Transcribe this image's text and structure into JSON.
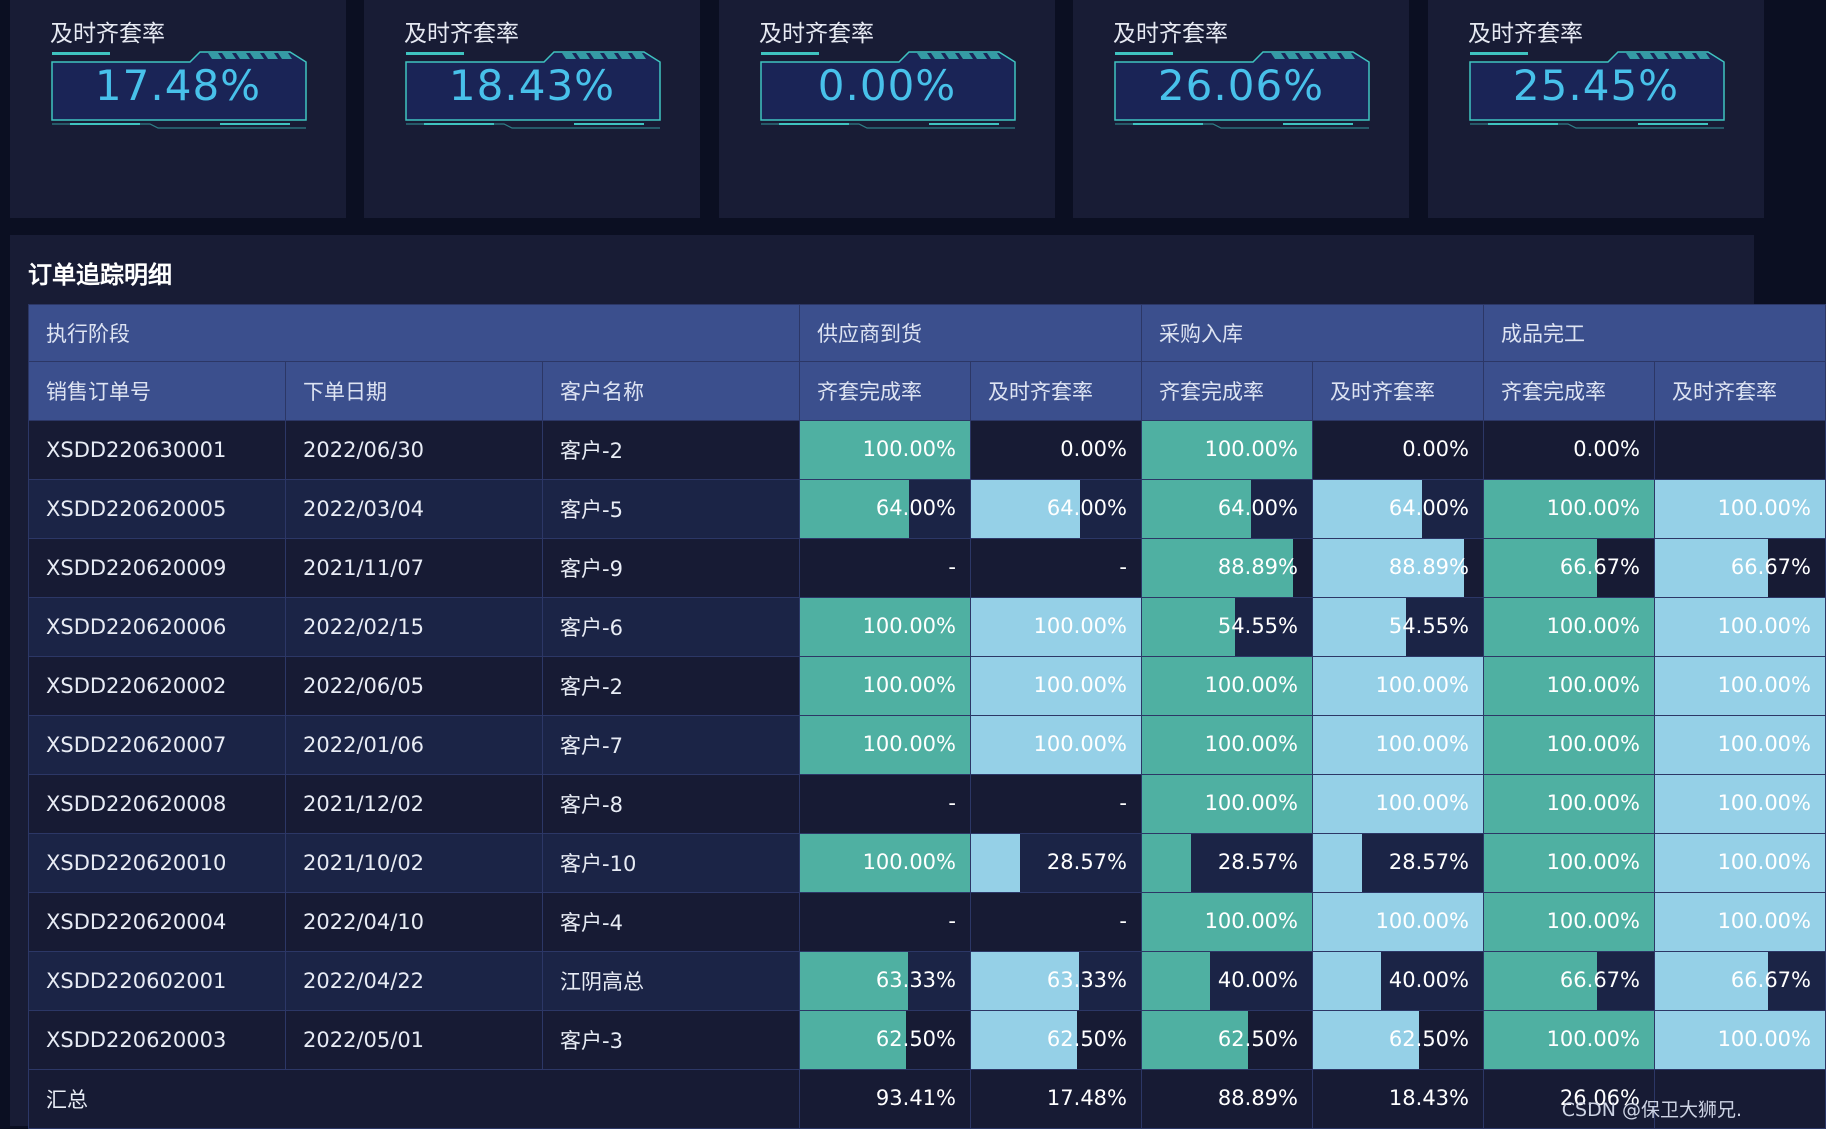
{
  "cards": [
    {
      "title": "及时齐套率",
      "value": "17.48%"
    },
    {
      "title": "及时齐套率",
      "value": "18.43%"
    },
    {
      "title": "及时齐套率",
      "value": "0.00%"
    },
    {
      "title": "及时齐套率",
      "value": "26.06%"
    },
    {
      "title": "及时齐套率",
      "value": "25.45%"
    }
  ],
  "panel": {
    "title": "订单追踪明细"
  },
  "table": {
    "group_headers": [
      "执行阶段",
      "供应商到货",
      "采购入库",
      "成品完工"
    ],
    "columns": [
      "销售订单号",
      "下单日期",
      "客户名称",
      "齐套完成率",
      "及时齐套率",
      "齐套完成率",
      "及时齐套率",
      "齐套完成率",
      "及时齐套率"
    ],
    "rows": [
      {
        "order": "XSDD220630001",
        "date": "2022/06/30",
        "customer": "客户-2",
        "vals": [
          "100.00%",
          "0.00%",
          "100.00%",
          "0.00%",
          "0.00%",
          ""
        ],
        "fracs": [
          1.0,
          0.0,
          1.0,
          0.0,
          0.0,
          0.0
        ]
      },
      {
        "order": "XSDD220620005",
        "date": "2022/03/04",
        "customer": "客户-5",
        "vals": [
          "64.00%",
          "64.00%",
          "64.00%",
          "64.00%",
          "100.00%",
          "100.00%"
        ],
        "fracs": [
          0.64,
          0.64,
          0.64,
          0.64,
          1.0,
          1.0
        ]
      },
      {
        "order": "XSDD220620009",
        "date": "2021/11/07",
        "customer": "客户-9",
        "vals": [
          "-",
          "-",
          "88.89%",
          "88.89%",
          "66.67%",
          "66.67%"
        ],
        "fracs": [
          0,
          0,
          0.8889,
          0.8889,
          0.6667,
          0.6667
        ]
      },
      {
        "order": "XSDD220620006",
        "date": "2022/02/15",
        "customer": "客户-6",
        "vals": [
          "100.00%",
          "100.00%",
          "54.55%",
          "54.55%",
          "100.00%",
          "100.00%"
        ],
        "fracs": [
          1.0,
          1.0,
          0.5455,
          0.5455,
          1.0,
          1.0
        ]
      },
      {
        "order": "XSDD220620002",
        "date": "2022/06/05",
        "customer": "客户-2",
        "vals": [
          "100.00%",
          "100.00%",
          "100.00%",
          "100.00%",
          "100.00%",
          "100.00%"
        ],
        "fracs": [
          1.0,
          1.0,
          1.0,
          1.0,
          1.0,
          1.0
        ]
      },
      {
        "order": "XSDD220620007",
        "date": "2022/01/06",
        "customer": "客户-7",
        "vals": [
          "100.00%",
          "100.00%",
          "100.00%",
          "100.00%",
          "100.00%",
          "100.00%"
        ],
        "fracs": [
          1.0,
          1.0,
          1.0,
          1.0,
          1.0,
          1.0
        ]
      },
      {
        "order": "XSDD220620008",
        "date": "2021/12/02",
        "customer": "客户-8",
        "vals": [
          "-",
          "-",
          "100.00%",
          "100.00%",
          "100.00%",
          "100.00%"
        ],
        "fracs": [
          0,
          0,
          1.0,
          1.0,
          1.0,
          1.0
        ]
      },
      {
        "order": "XSDD220620010",
        "date": "2021/10/02",
        "customer": "客户-10",
        "vals": [
          "100.00%",
          "28.57%",
          "28.57%",
          "28.57%",
          "100.00%",
          "100.00%"
        ],
        "fracs": [
          1.0,
          0.2857,
          0.2857,
          0.2857,
          1.0,
          1.0
        ]
      },
      {
        "order": "XSDD220620004",
        "date": "2022/04/10",
        "customer": "客户-4",
        "vals": [
          "-",
          "-",
          "100.00%",
          "100.00%",
          "100.00%",
          "100.00%"
        ],
        "fracs": [
          0,
          0,
          1.0,
          1.0,
          1.0,
          1.0
        ]
      },
      {
        "order": "XSDD220602001",
        "date": "2022/04/22",
        "customer": "江阴高总",
        "vals": [
          "63.33%",
          "63.33%",
          "40.00%",
          "40.00%",
          "66.67%",
          "66.67%"
        ],
        "fracs": [
          0.6333,
          0.6333,
          0.4,
          0.4,
          0.6667,
          0.6667
        ]
      },
      {
        "order": "XSDD220620003",
        "date": "2022/05/01",
        "customer": "客户-3",
        "vals": [
          "62.50%",
          "62.50%",
          "62.50%",
          "62.50%",
          "100.00%",
          "100.00%"
        ],
        "fracs": [
          0.625,
          0.625,
          0.625,
          0.625,
          1.0,
          1.0
        ]
      }
    ],
    "total": {
      "label": "汇总",
      "vals": [
        "93.41%",
        "17.48%",
        "88.89%",
        "18.43%",
        "26.06%",
        ""
      ]
    }
  },
  "colors": {
    "complete_bar": "#4fb0a2",
    "timely_bar": "#95d0e7",
    "value_text": "#48c1ea",
    "header_bg": "#3b4f8d"
  },
  "watermark": "CSDN @保卫大狮兄."
}
